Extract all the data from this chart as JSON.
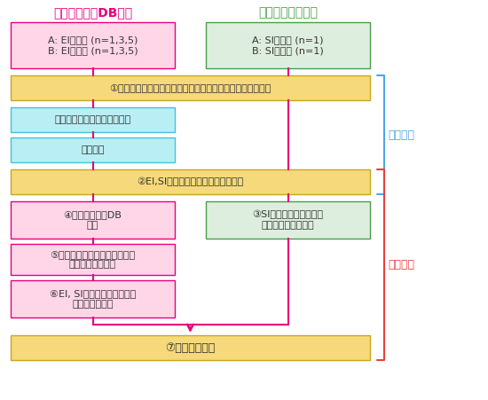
{
  "bg_color": "#ffffff",
  "title_left": "ライブラリーDB検索",
  "title_right": "分子イオンの探索",
  "title_left_color": "#e8007d",
  "title_right_color": "#4a9e4a",
  "box_pink_bg": "#ffd6e7",
  "box_pink_border": "#e8007d",
  "box_green_bg": "#deeede",
  "box_green_border": "#4a9e4a",
  "box_yellow_bg": "#f5d97a",
  "box_yellow_border": "#c8a820",
  "box_cyan_bg": "#b8eef4",
  "box_cyan_border": "#40c4d8",
  "arrow_color": "#e8007d",
  "label_sai_color": "#4da6e8",
  "label_togo_color": "#e84040",
  "box1_text": "A: EIデータ (n=1,3,5)\nB: EIデータ (n=1,3,5)",
  "box2_text": "A: SIデータ (n=1)\nB: SIデータ (n=1)",
  "box3_text": "①クロマトグラムピーク検出（デコンボリューション検出）",
  "box4_text": "アライメント（同一性判定）",
  "box5_text": "差異分析",
  "box6_text": "②EI,SIデータ中の各ピークのリンク",
  "box7_text": "④ライブラリーDB\n検索",
  "box8_text": "③SIマススペクトル中の\n分子イオン自動選択",
  "box9_text": "⑤リテンションインデックスに\nよる候補絞り込み",
  "box10_text": "⑥EI, SIマススペクトル中の\n分子イオン確認",
  "box11_text": "⑦統合解析結果",
  "label_sai": "差異分析",
  "label_togo": "統合解析"
}
